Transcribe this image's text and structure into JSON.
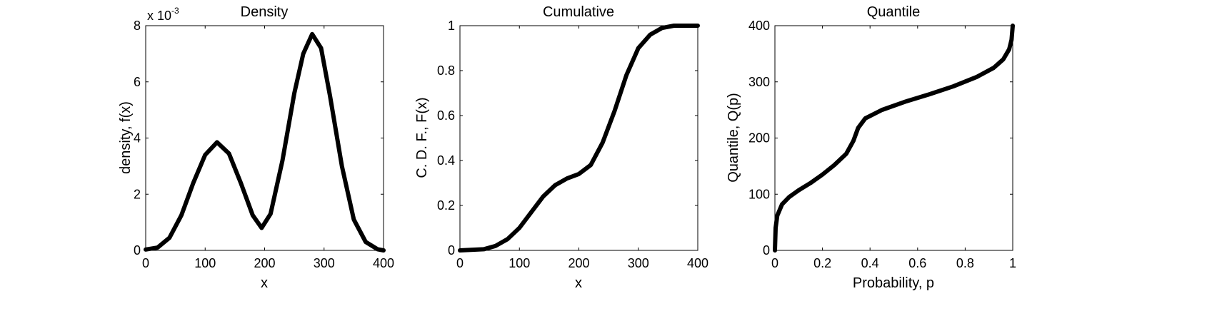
{
  "chart_data": [
    {
      "type": "line",
      "title": "Density",
      "xlabel": "x",
      "ylabel": "density, f(x)",
      "y_multiplier_label": {
        "base": "x 10",
        "exponent": "-3"
      },
      "xlim": [
        0,
        400
      ],
      "ylim": [
        0,
        8
      ],
      "xticks": [
        "0",
        "100",
        "200",
        "300",
        "400"
      ],
      "yticks": [
        "0",
        "2",
        "4",
        "6",
        "8"
      ],
      "grid": false,
      "line_color": "#000000",
      "series": [
        {
          "x": [
            0,
            20,
            40,
            60,
            80,
            100,
            120,
            140,
            160,
            180,
            195,
            210,
            230,
            250,
            265,
            280,
            295,
            310,
            330,
            350,
            370,
            390,
            400
          ],
          "y": [
            0.03,
            0.1,
            0.45,
            1.25,
            2.4,
            3.4,
            3.85,
            3.45,
            2.4,
            1.25,
            0.8,
            1.3,
            3.2,
            5.6,
            7.0,
            7.7,
            7.2,
            5.5,
            3.0,
            1.1,
            0.3,
            0.04,
            0.0
          ]
        }
      ]
    },
    {
      "type": "line",
      "title": "Cumulative",
      "xlabel": "x",
      "ylabel": "C. D. F., F(x)",
      "xlim": [
        0,
        400
      ],
      "ylim": [
        0,
        1
      ],
      "xticks": [
        "0",
        "100",
        "200",
        "300",
        "400"
      ],
      "yticks": [
        "0",
        "0.2",
        "0.4",
        "0.6",
        "0.8",
        "1"
      ],
      "grid": false,
      "line_color": "#000000",
      "series": [
        {
          "x": [
            0,
            40,
            60,
            80,
            100,
            120,
            140,
            160,
            180,
            200,
            220,
            240,
            260,
            280,
            300,
            320,
            340,
            360,
            380,
            400
          ],
          "y": [
            0.0,
            0.005,
            0.02,
            0.05,
            0.1,
            0.17,
            0.24,
            0.29,
            0.32,
            0.34,
            0.38,
            0.48,
            0.62,
            0.78,
            0.9,
            0.96,
            0.99,
            1.0,
            1.0,
            1.0
          ]
        }
      ]
    },
    {
      "type": "line",
      "title": "Quantile",
      "xlabel": "Probability, p",
      "ylabel": "Quantile, Q(p)",
      "xlim": [
        0,
        1
      ],
      "ylim": [
        0,
        400
      ],
      "xticks": [
        "0",
        "0.2",
        "0.4",
        "0.6",
        "0.8",
        "1"
      ],
      "yticks": [
        "0",
        "100",
        "200",
        "300",
        "400"
      ],
      "grid": false,
      "line_color": "#000000",
      "series": [
        {
          "x": [
            0.0,
            0.003,
            0.01,
            0.03,
            0.06,
            0.1,
            0.15,
            0.2,
            0.25,
            0.3,
            0.33,
            0.35,
            0.38,
            0.45,
            0.55,
            0.65,
            0.75,
            0.85,
            0.92,
            0.96,
            0.985,
            0.995,
            1.0
          ],
          "y": [
            0,
            40,
            62,
            82,
            95,
            107,
            120,
            135,
            152,
            172,
            195,
            218,
            235,
            250,
            265,
            278,
            292,
            309,
            325,
            340,
            358,
            375,
            400
          ]
        }
      ]
    }
  ]
}
